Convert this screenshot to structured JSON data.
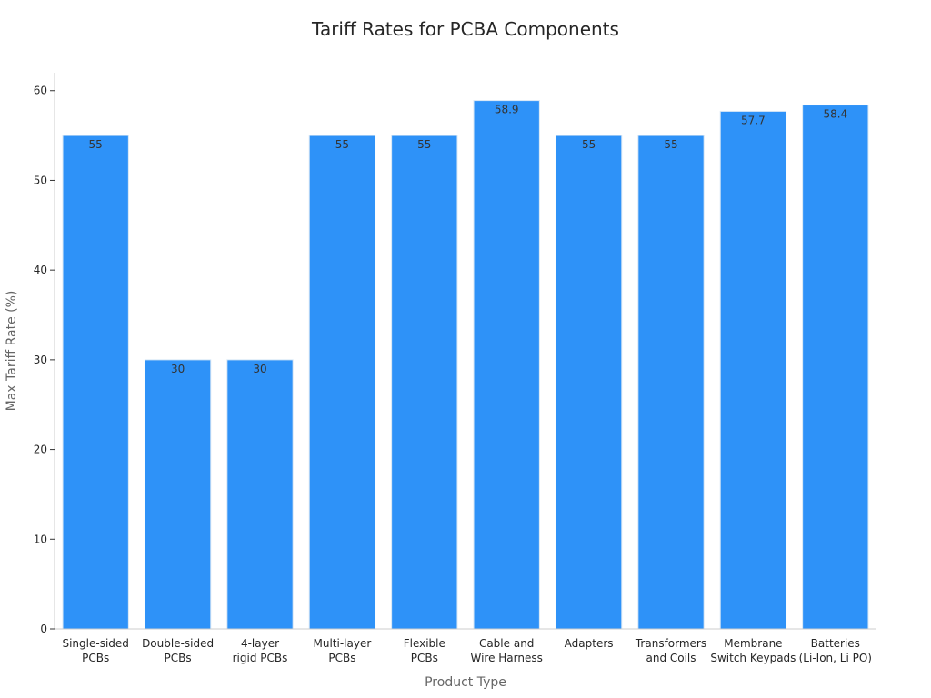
{
  "chart_data": {
    "type": "bar",
    "title": "Tariff Rates for PCBA Components",
    "xlabel": "Product Type",
    "ylabel": "Max Tariff Rate (%)",
    "ylim": [
      0,
      62
    ],
    "yticks": [
      0,
      10,
      20,
      30,
      40,
      50,
      60
    ],
    "categories": [
      [
        "Single-sided",
        "PCBs"
      ],
      [
        "Double-sided",
        "PCBs"
      ],
      [
        "4-layer",
        "rigid PCBs"
      ],
      [
        "Multi-layer",
        "PCBs"
      ],
      [
        "Flexible",
        "PCBs"
      ],
      [
        "Cable and",
        "Wire Harness"
      ],
      [
        "Adapters"
      ],
      [
        "Transformers",
        "and Coils"
      ],
      [
        "Membrane",
        "Switch Keypads"
      ],
      [
        "Batteries",
        "(Li-Ion, Li PO)"
      ]
    ],
    "values": [
      55,
      30,
      30,
      55,
      55,
      58.9,
      55,
      55,
      57.7,
      58.4
    ],
    "value_labels": [
      "55",
      "30",
      "30",
      "55",
      "55",
      "58.9",
      "55",
      "55",
      "57.7",
      "58.4"
    ],
    "bar_color": "#2e92f8",
    "bar_edge_color": "#d6e6f5",
    "grid": false
  }
}
